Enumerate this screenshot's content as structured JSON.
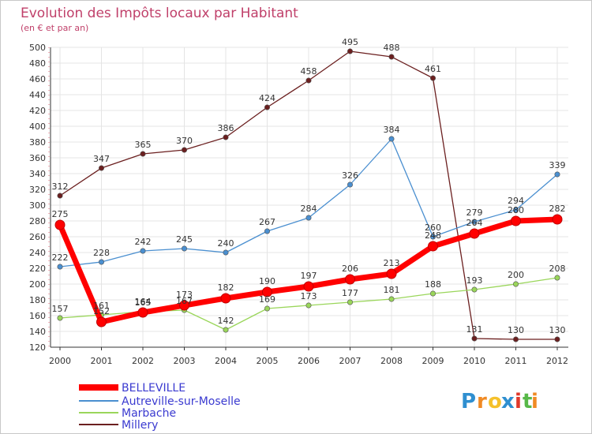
{
  "chart_data": {
    "type": "line",
    "title": "Evolution des Impôts locaux par Habitant",
    "subtitle": "(en € et par an)",
    "xlabel": "",
    "ylabel": "",
    "categories": [
      "2000",
      "2001",
      "2002",
      "2003",
      "2004",
      "2005",
      "2006",
      "2007",
      "2008",
      "2009",
      "2010",
      "2011",
      "2012"
    ],
    "ylim": [
      120,
      500
    ],
    "yticks": [
      120,
      140,
      160,
      180,
      200,
      220,
      240,
      260,
      280,
      300,
      320,
      340,
      360,
      380,
      400,
      420,
      440,
      460,
      480,
      500
    ],
    "grid": true,
    "legend_position": "bottom-left",
    "series": [
      {
        "name": "BELLEVILLE",
        "color": "#ff0000",
        "values": [
          275,
          152,
          164,
          173,
          182,
          190,
          197,
          206,
          213,
          248,
          264,
          280,
          282
        ]
      },
      {
        "name": "Autreville-sur-Moselle",
        "color": "#4a8fd0",
        "values": [
          222,
          228,
          242,
          245,
          240,
          267,
          284,
          326,
          384,
          260,
          279,
          294,
          339
        ]
      },
      {
        "name": "Marbache",
        "color": "#9ad65a",
        "values": [
          157,
          161,
          165,
          167,
          142,
          169,
          173,
          177,
          181,
          188,
          193,
          200,
          208
        ]
      },
      {
        "name": "Millery",
        "color": "#6b1f1f",
        "values": [
          312,
          347,
          365,
          370,
          386,
          424,
          458,
          495,
          488,
          461,
          131,
          130,
          130
        ]
      }
    ]
  },
  "logo": {
    "letters": [
      "P",
      "r",
      "o",
      "x",
      "i",
      "t",
      "i"
    ],
    "colors": [
      "#2f8fd0",
      "#f08a24",
      "#f5c12b",
      "#2f8fd0",
      "#e0392b",
      "#58b848",
      "#f08a24"
    ]
  }
}
